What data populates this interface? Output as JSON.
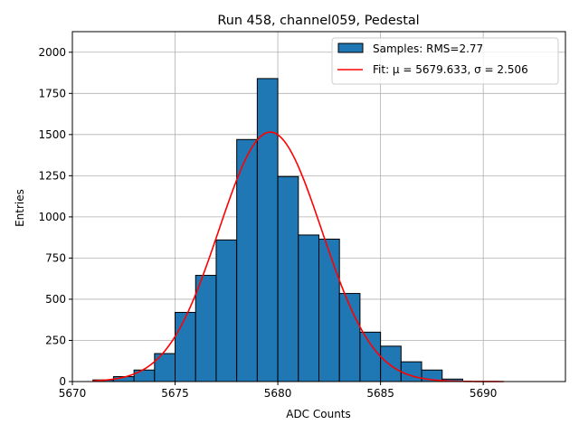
{
  "chart_data": {
    "type": "bar",
    "title": "Run 458, channel059, Pedestal",
    "xlabel": "ADC Counts",
    "ylabel": "Entries",
    "xlim": [
      5670,
      5694
    ],
    "ylim": [
      0,
      2125
    ],
    "grid": true,
    "legend_position": "top-right",
    "x_ticks": [
      5670,
      5675,
      5680,
      5685,
      5690
    ],
    "y_ticks": [
      0,
      250,
      500,
      750,
      1000,
      1250,
      1500,
      1750,
      2000
    ],
    "histogram": {
      "name": "Samples: RMS=2.77",
      "color": "#1f77b4",
      "edge_color": "#000000",
      "bins": [
        {
          "x0": 5671,
          "x1": 5672,
          "value": 10
        },
        {
          "x0": 5672,
          "x1": 5673,
          "value": 30
        },
        {
          "x0": 5673,
          "x1": 5674,
          "value": 70
        },
        {
          "x0": 5674,
          "x1": 5675,
          "value": 170
        },
        {
          "x0": 5675,
          "x1": 5676,
          "value": 420
        },
        {
          "x0": 5676,
          "x1": 5677,
          "value": 645
        },
        {
          "x0": 5677,
          "x1": 5678,
          "value": 860
        },
        {
          "x0": 5678,
          "x1": 5679,
          "value": 1470
        },
        {
          "x0": 5679,
          "x1": 5680,
          "value": 1840
        },
        {
          "x0": 5680,
          "x1": 5681,
          "value": 1245
        },
        {
          "x0": 5681,
          "x1": 5682,
          "value": 890
        },
        {
          "x0": 5682,
          "x1": 5683,
          "value": 865
        },
        {
          "x0": 5683,
          "x1": 5684,
          "value": 535
        },
        {
          "x0": 5684,
          "x1": 5685,
          "value": 300
        },
        {
          "x0": 5685,
          "x1": 5686,
          "value": 215
        },
        {
          "x0": 5686,
          "x1": 5687,
          "value": 120
        },
        {
          "x0": 5687,
          "x1": 5688,
          "value": 70
        },
        {
          "x0": 5688,
          "x1": 5689,
          "value": 15
        }
      ]
    },
    "fit": {
      "name": "Fit: μ = 5679.633, σ = 2.506",
      "color": "#ff0000",
      "mu": 5679.633,
      "sigma": 2.506,
      "amplitude": 1515,
      "x_range": [
        5671,
        5691
      ]
    }
  }
}
